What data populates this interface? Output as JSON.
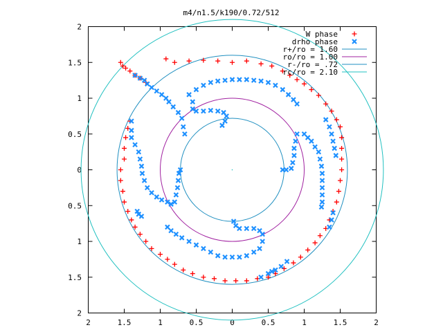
{
  "chart_data": {
    "type": "scatter",
    "title": "m4/n1.5/k190/0.72/512",
    "xlim": [
      -2,
      2
    ],
    "ylim": [
      -2,
      2
    ],
    "x_ticks": [
      {
        "value": -2,
        "label": "2"
      },
      {
        "value": -1.5,
        "label": "1.5"
      },
      {
        "value": -1,
        "label": "1"
      },
      {
        "value": -0.5,
        "label": "0.5"
      },
      {
        "value": 0,
        "label": "0"
      },
      {
        "value": 0.5,
        "label": "0.5"
      },
      {
        "value": 1,
        "label": "1"
      },
      {
        "value": 1.5,
        "label": "1.5"
      },
      {
        "value": 2,
        "label": "2"
      }
    ],
    "y_ticks": [
      {
        "value": 2,
        "label": "2"
      },
      {
        "value": 1.5,
        "label": "1.5"
      },
      {
        "value": 1,
        "label": "1"
      },
      {
        "value": 0.5,
        "label": "0.5"
      },
      {
        "value": 0,
        "label": "0"
      },
      {
        "value": -0.5,
        "label": "0.5"
      },
      {
        "value": -1,
        "label": "1"
      },
      {
        "value": -1.5,
        "label": "1.5"
      },
      {
        "value": -2,
        "label": "2"
      }
    ],
    "grid": false,
    "legend_position": "top-right",
    "circles": [
      {
        "name": "r+/ro = 1.60",
        "radius": 1.6,
        "color": "#1f8fc0"
      },
      {
        "name": "ro/ro = 1.00",
        "radius": 1.0,
        "color": "#a020a0"
      },
      {
        "name": "r-/ro = .72",
        "radius": 0.72,
        "color": "#1f8fc0"
      },
      {
        "name": "rc/ro = 2.10",
        "radius": 2.1,
        "color": "#20c0c0"
      }
    ],
    "series": [
      {
        "name": "W phase",
        "marker": "plus",
        "color": "#ff0000",
        "points": [
          [
            -1.55,
            1.5
          ],
          [
            -1.52,
            1.45
          ],
          [
            -1.48,
            1.42
          ],
          [
            -1.42,
            1.38
          ],
          [
            -1.35,
            1.32
          ],
          [
            -1.28,
            1.28
          ],
          [
            -1.2,
            1.22
          ],
          [
            -0.92,
            1.55
          ],
          [
            -0.8,
            1.5
          ],
          [
            -0.6,
            1.52
          ],
          [
            -0.4,
            1.53
          ],
          [
            -0.2,
            1.52
          ],
          [
            0.0,
            1.5
          ],
          [
            0.2,
            1.52
          ],
          [
            0.4,
            1.48
          ],
          [
            0.55,
            1.45
          ],
          [
            0.7,
            1.38
          ],
          [
            0.8,
            1.32
          ],
          [
            0.9,
            1.26
          ],
          [
            1.0,
            1.2
          ],
          [
            1.1,
            1.12
          ],
          [
            1.2,
            1.04
          ],
          [
            1.3,
            0.92
          ],
          [
            1.38,
            0.82
          ],
          [
            1.45,
            0.7
          ],
          [
            1.5,
            0.6
          ],
          [
            1.52,
            0.45
          ],
          [
            1.52,
            0.3
          ],
          [
            1.52,
            0.15
          ],
          [
            1.52,
            0.0
          ],
          [
            1.5,
            -0.15
          ],
          [
            1.48,
            -0.3
          ],
          [
            1.45,
            -0.45
          ],
          [
            1.4,
            -0.58
          ],
          [
            1.35,
            -0.7
          ],
          [
            1.3,
            -0.82
          ],
          [
            1.22,
            -0.92
          ],
          [
            1.15,
            -1.02
          ],
          [
            1.05,
            -1.12
          ],
          [
            0.95,
            -1.22
          ],
          [
            0.85,
            -1.3
          ],
          [
            0.72,
            -1.38
          ],
          [
            0.6,
            -1.45
          ],
          [
            0.5,
            -1.5
          ],
          [
            -1.55,
            0.0
          ],
          [
            -1.55,
            -0.15
          ],
          [
            -1.52,
            -0.3
          ],
          [
            -1.5,
            -0.45
          ],
          [
            -1.45,
            -0.58
          ],
          [
            -1.4,
            -0.7
          ],
          [
            -1.35,
            -0.8
          ],
          [
            -1.28,
            -0.9
          ],
          [
            -1.2,
            -1.0
          ],
          [
            -1.12,
            -1.1
          ],
          [
            -1.0,
            -1.18
          ],
          [
            -0.9,
            -1.25
          ],
          [
            -0.8,
            -1.32
          ],
          [
            -0.68,
            -1.4
          ],
          [
            -0.55,
            -1.45
          ],
          [
            -0.4,
            -1.5
          ],
          [
            -0.25,
            -1.52
          ],
          [
            -0.1,
            -1.55
          ],
          [
            0.05,
            -1.55
          ],
          [
            0.2,
            -1.55
          ],
          [
            0.35,
            -1.52
          ],
          [
            -1.5,
            0.15
          ],
          [
            -1.5,
            0.3
          ],
          [
            -1.48,
            0.45
          ],
          [
            -1.45,
            0.58
          ],
          [
            -1.42,
            0.68
          ]
        ]
      },
      {
        "name": "drho phase",
        "marker": "cross",
        "color": "#1e90ff",
        "points": [
          [
            -1.35,
            1.32
          ],
          [
            -1.28,
            1.28
          ],
          [
            -1.22,
            1.25
          ],
          [
            -1.18,
            1.2
          ],
          [
            -1.12,
            1.15
          ],
          [
            -1.05,
            1.1
          ],
          [
            -0.98,
            1.05
          ],
          [
            -0.92,
            1.0
          ],
          [
            -0.88,
            0.95
          ],
          [
            -0.82,
            0.88
          ],
          [
            -0.75,
            0.8
          ],
          [
            -0.7,
            0.72
          ],
          [
            -0.68,
            0.6
          ],
          [
            -0.66,
            0.5
          ],
          [
            -0.6,
            1.05
          ],
          [
            -0.5,
            1.12
          ],
          [
            -0.4,
            1.18
          ],
          [
            -0.3,
            1.22
          ],
          [
            -0.2,
            1.24
          ],
          [
            -0.1,
            1.25
          ],
          [
            0.0,
            1.26
          ],
          [
            0.1,
            1.26
          ],
          [
            0.2,
            1.26
          ],
          [
            0.3,
            1.25
          ],
          [
            0.4,
            1.24
          ],
          [
            0.5,
            1.22
          ],
          [
            0.6,
            1.18
          ],
          [
            0.7,
            1.12
          ],
          [
            0.78,
            1.05
          ],
          [
            0.85,
            0.98
          ],
          [
            0.9,
            0.92
          ],
          [
            -0.55,
            0.95
          ],
          [
            -0.55,
            0.85
          ],
          [
            -0.5,
            0.82
          ],
          [
            -0.4,
            0.82
          ],
          [
            -0.3,
            0.83
          ],
          [
            -0.2,
            0.82
          ],
          [
            -0.12,
            0.8
          ],
          [
            -0.08,
            0.75
          ],
          [
            -0.1,
            0.68
          ],
          [
            -0.14,
            0.62
          ],
          [
            1.0,
            0.5
          ],
          [
            1.05,
            0.45
          ],
          [
            1.1,
            0.4
          ],
          [
            1.15,
            0.32
          ],
          [
            1.2,
            0.25
          ],
          [
            1.22,
            0.15
          ],
          [
            1.24,
            0.05
          ],
          [
            1.25,
            -0.05
          ],
          [
            1.25,
            -0.15
          ],
          [
            1.25,
            -0.25
          ],
          [
            1.25,
            -0.35
          ],
          [
            1.25,
            -0.45
          ],
          [
            1.24,
            -0.52
          ],
          [
            0.9,
            0.5
          ],
          [
            0.88,
            0.4
          ],
          [
            0.86,
            0.3
          ],
          [
            0.86,
            0.2
          ],
          [
            0.84,
            0.1
          ],
          [
            0.82,
            0.02
          ],
          [
            0.75,
            0.0
          ],
          [
            0.7,
            0.0
          ],
          [
            1.3,
            0.7
          ],
          [
            1.35,
            0.6
          ],
          [
            1.38,
            0.5
          ],
          [
            1.4,
            0.4
          ],
          [
            1.42,
            0.3
          ],
          [
            1.44,
            0.2
          ],
          [
            -1.4,
            0.68
          ],
          [
            -1.4,
            0.55
          ],
          [
            -1.4,
            0.45
          ],
          [
            -1.35,
            0.35
          ],
          [
            -1.3,
            0.25
          ],
          [
            -1.28,
            0.15
          ],
          [
            -1.26,
            0.05
          ],
          [
            -1.25,
            -0.05
          ],
          [
            -1.22,
            -0.15
          ],
          [
            -1.18,
            -0.25
          ],
          [
            -1.12,
            -0.32
          ],
          [
            -1.05,
            -0.38
          ],
          [
            -0.98,
            -0.42
          ],
          [
            -0.9,
            -0.45
          ],
          [
            -0.85,
            -0.48
          ],
          [
            -0.8,
            -0.45
          ],
          [
            -0.78,
            -0.35
          ],
          [
            -0.76,
            -0.25
          ],
          [
            -0.75,
            -0.15
          ],
          [
            -0.74,
            -0.05
          ],
          [
            -0.72,
            0.0
          ],
          [
            -0.9,
            -0.8
          ],
          [
            -0.85,
            -0.85
          ],
          [
            -0.78,
            -0.9
          ],
          [
            -0.7,
            -0.95
          ],
          [
            -0.6,
            -1.0
          ],
          [
            -0.5,
            -1.05
          ],
          [
            -0.4,
            -1.1
          ],
          [
            -0.3,
            -1.15
          ],
          [
            -0.2,
            -1.2
          ],
          [
            -0.1,
            -1.22
          ],
          [
            0.0,
            -1.22
          ],
          [
            0.1,
            -1.22
          ],
          [
            0.2,
            -1.2
          ],
          [
            0.3,
            -1.15
          ],
          [
            0.38,
            -1.1
          ],
          [
            0.42,
            -1.0
          ],
          [
            0.42,
            -0.9
          ],
          [
            0.38,
            -0.85
          ],
          [
            0.3,
            -0.82
          ],
          [
            0.2,
            -0.82
          ],
          [
            0.1,
            -0.82
          ],
          [
            0.05,
            -0.78
          ],
          [
            0.02,
            -0.72
          ],
          [
            0.4,
            -1.5
          ],
          [
            0.5,
            -1.45
          ],
          [
            0.55,
            -1.42
          ],
          [
            0.6,
            -1.4
          ],
          [
            0.68,
            -1.35
          ],
          [
            0.76,
            -1.28
          ],
          [
            -1.32,
            -0.58
          ],
          [
            -1.3,
            -0.62
          ],
          [
            -1.26,
            -0.65
          ],
          [
            1.4,
            -0.6
          ],
          [
            1.38,
            -0.7
          ],
          [
            1.35,
            -0.8
          ]
        ]
      }
    ]
  }
}
